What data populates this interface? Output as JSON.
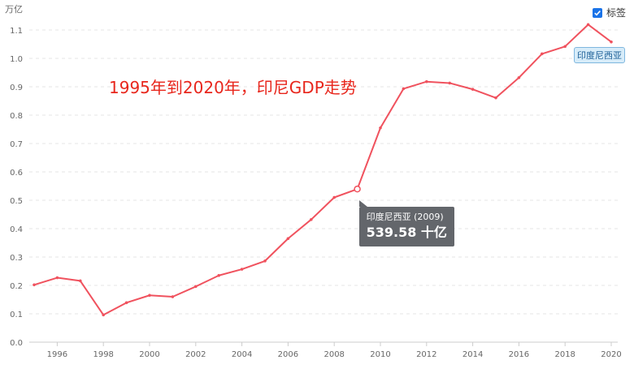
{
  "chart_data": {
    "type": "line",
    "title": "1995年到2020年，印尼GDP走势",
    "y_unit_label": "万亿",
    "ylim": [
      0.0,
      1.1
    ],
    "y_ticks": [
      "0.0",
      "0.1",
      "0.2",
      "0.3",
      "0.4",
      "0.5",
      "0.6",
      "0.7",
      "0.8",
      "0.9",
      "1.0",
      "1.1"
    ],
    "x_ticks": [
      "1996",
      "1998",
      "2000",
      "2002",
      "2004",
      "2006",
      "2008",
      "2010",
      "2012",
      "2014",
      "2016",
      "2018",
      "2020"
    ],
    "grid": true,
    "series": [
      {
        "name": "印度尼西亚",
        "color": "#f0525e",
        "x": [
          1995,
          1996,
          1997,
          1998,
          1999,
          2000,
          2001,
          2002,
          2003,
          2004,
          2005,
          2006,
          2007,
          2008,
          2009,
          2010,
          2011,
          2012,
          2013,
          2014,
          2015,
          2016,
          2017,
          2018,
          2019,
          2020
        ],
        "values": [
          0.202,
          0.227,
          0.216,
          0.096,
          0.139,
          0.165,
          0.16,
          0.196,
          0.235,
          0.257,
          0.286,
          0.365,
          0.432,
          0.51,
          0.5396,
          0.755,
          0.893,
          0.918,
          0.913,
          0.891,
          0.861,
          0.932,
          1.016,
          1.042,
          1.119,
          1.058
        ]
      }
    ]
  },
  "legend_toggle": {
    "label": "标签",
    "checked": true
  },
  "tooltip": {
    "header": "印度尼西亚 (2009)",
    "value": "539.58 十亿"
  },
  "end_label": "印度尼西亚"
}
